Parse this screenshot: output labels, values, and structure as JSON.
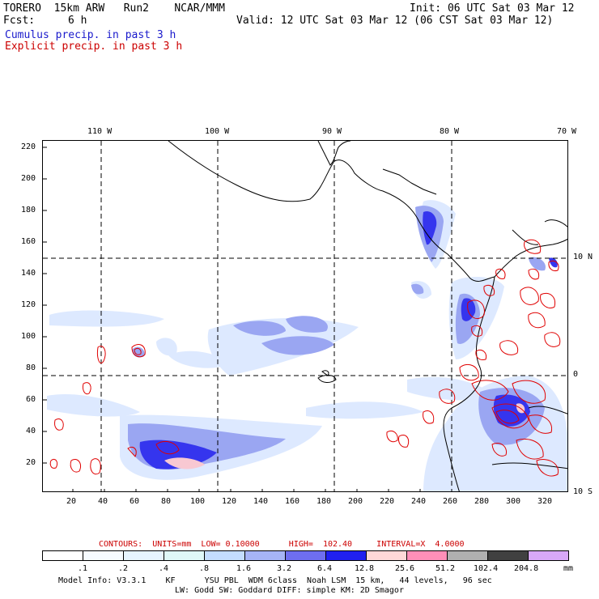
{
  "header": {
    "title_left": "TORERO  15km ARW   Run2    NCAR/MMM",
    "init": "Init: 06 UTC Sat 03 Mar 12",
    "fcst_label": "Fcst:",
    "fcst_value": "6 h",
    "valid": "Valid: 12 UTC Sat 03 Mar 12 (06 CST Sat 03 Mar 12)",
    "field1": "Cumulus precip. in past 3 h",
    "field2": "Explicit precip. in past 3 h"
  },
  "map": {
    "lon_labels": [
      "110 W",
      "100 W",
      "90 W",
      "80 W",
      "70 W"
    ],
    "lat_labels": [
      "10 N",
      "0",
      "10 S"
    ],
    "y_ticks": [
      "220",
      "200",
      "180",
      "160",
      "140",
      "120",
      "100",
      "80",
      "60",
      "40",
      "20"
    ],
    "x_ticks": [
      "20",
      "40",
      "60",
      "80",
      "100",
      "120",
      "140",
      "160",
      "180",
      "200",
      "220",
      "240",
      "260",
      "280",
      "300",
      "320"
    ],
    "colors": {
      "c1": "#e8f2ff",
      "c2": "#c6ddff",
      "c3": "#9fb0f4",
      "c4": "#6a6af0",
      "c5": "#2a2af0",
      "contour": "#e00000"
    }
  },
  "contour_info": {
    "text": "CONTOURS:  UNITS=mm  LOW= 0.10000      HIGH=  102.40     INTERVAL=X  4.0000"
  },
  "legend": {
    "values": [
      ".1",
      ".2",
      ".4",
      ".8",
      "1.6",
      "3.2",
      "6.4",
      "12.8",
      "25.6",
      "51.2",
      "102.4",
      "204.8"
    ],
    "unit": "mm",
    "colors": [
      "#ffffff",
      "#f6fbff",
      "#e6f4ff",
      "#dff8f8",
      "#c4ddff",
      "#a6b4f6",
      "#6e6ef0",
      "#2020f0",
      "#ffd8d8",
      "#ff8fb8",
      "#b0b0b0",
      "#404040",
      "#d8a8f8"
    ]
  },
  "footer": {
    "line1": "Model Info: V3.3.1    KF      YSU PBL  WDM 6class  Noah LSM  15 km,   44 levels,   96 sec",
    "line2": "LW: Godd SW: Goddard DIFF: simple KM: 2D Smagor"
  }
}
